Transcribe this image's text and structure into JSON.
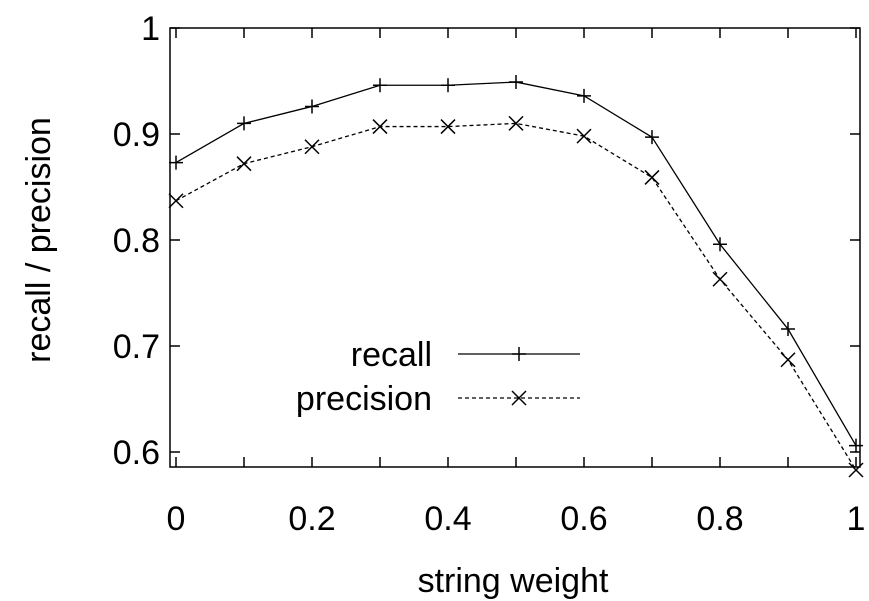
{
  "chart_data": {
    "type": "line",
    "title": "",
    "xlabel": "string weight",
    "ylabel": "recall / precision",
    "xlim": [
      0,
      1
    ],
    "ylim": [
      0.58,
      1.0
    ],
    "xticks": [
      0,
      0.2,
      0.4,
      0.6,
      0.8,
      1
    ],
    "xtick_labels": [
      "0",
      "0.2",
      "0.4",
      "0.6",
      "0.8",
      "1"
    ],
    "yticks": [
      0.6,
      0.7,
      0.8,
      0.9,
      1.0
    ],
    "ytick_labels": [
      "0.6",
      "0.7",
      "0.8",
      "0.9",
      "1"
    ],
    "grid": false,
    "legend_position": "center",
    "x": [
      0,
      0.1,
      0.2,
      0.3,
      0.4,
      0.5,
      0.6,
      0.7,
      0.8,
      0.9,
      1.0
    ],
    "series": [
      {
        "name": "recall",
        "marker": "plus",
        "line_style": "solid",
        "values": [
          0.873,
          0.91,
          0.926,
          0.946,
          0.946,
          0.949,
          0.936,
          0.897,
          0.796,
          0.716,
          0.606
        ]
      },
      {
        "name": "precision",
        "marker": "x",
        "line_style": "dashed",
        "values": [
          0.837,
          0.872,
          0.888,
          0.907,
          0.907,
          0.91,
          0.898,
          0.859,
          0.763,
          0.687,
          0.583
        ]
      }
    ]
  }
}
